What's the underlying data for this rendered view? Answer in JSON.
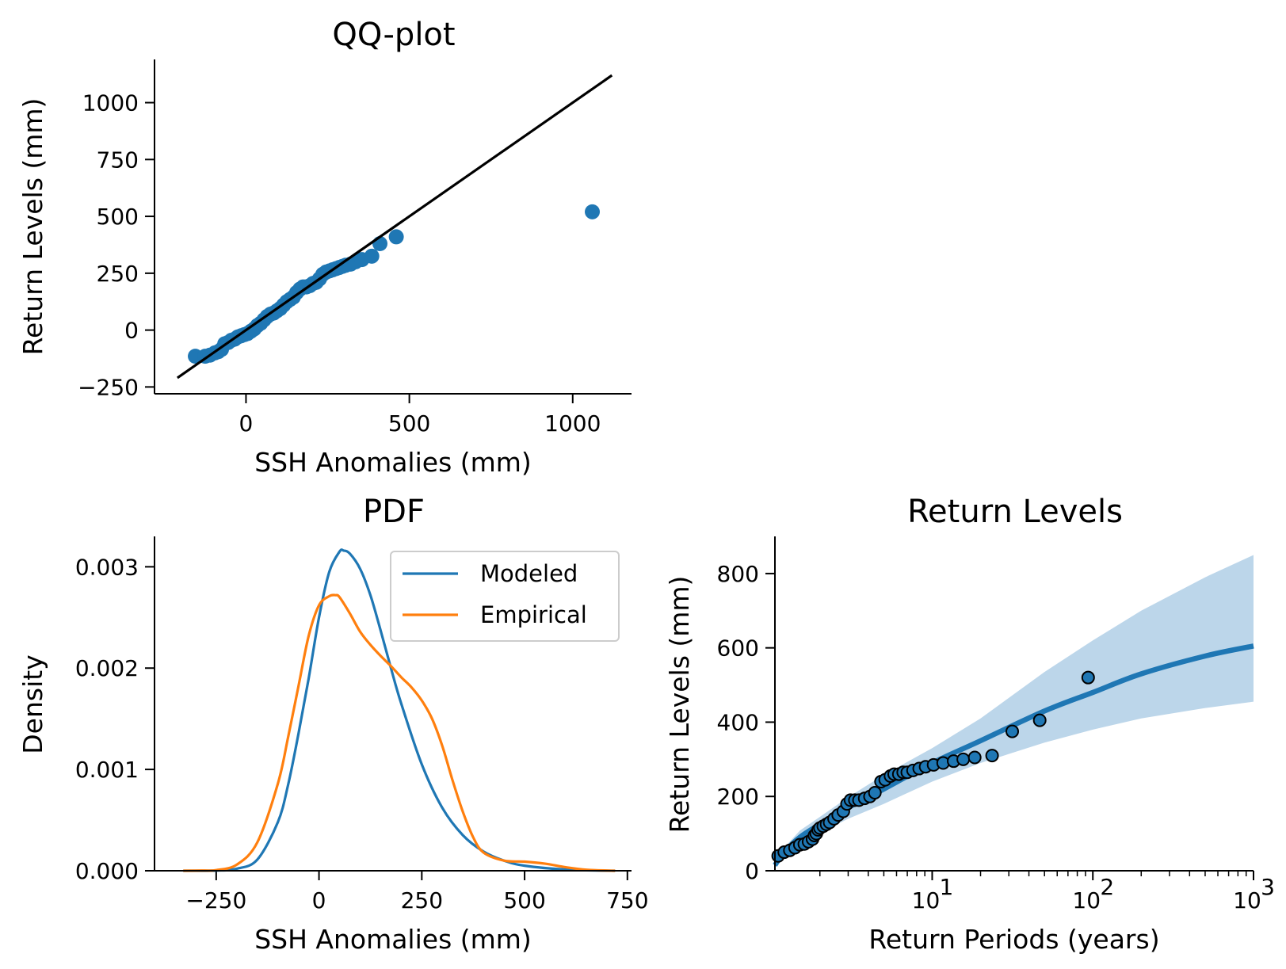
{
  "colors": {
    "blue": "#1f77b4",
    "orange": "#ff7f0e",
    "band": "#bcd6ea",
    "line": "#000000"
  },
  "chart_data": [
    {
      "id": "qq",
      "type": "scatter",
      "title": "QQ-plot",
      "xlabel": "SSH Anomalies (mm)",
      "ylabel": "Return Levels (mm)",
      "xlim": [
        -280,
        1180
      ],
      "ylim": [
        -280,
        1190
      ],
      "xticks": [
        0,
        500,
        1000
      ],
      "xticklabels": [
        "0",
        "500",
        "1000"
      ],
      "yticks": [
        -250,
        0,
        250,
        500,
        750,
        1000
      ],
      "yticklabels": [
        "−250",
        "0",
        "250",
        "500",
        "750",
        "1000"
      ],
      "reference_line": {
        "x": [
          -210,
          1120
        ],
        "y": [
          -210,
          1120
        ]
      },
      "points": {
        "x": [
          -155,
          -125,
          -110,
          -95,
          -85,
          -75,
          -65,
          -55,
          -45,
          -35,
          -25,
          -15,
          -5,
          5,
          15,
          25,
          35,
          45,
          55,
          65,
          75,
          85,
          95,
          105,
          115,
          125,
          135,
          145,
          155,
          165,
          175,
          185,
          195,
          205,
          215,
          225,
          235,
          245,
          255,
          265,
          275,
          285,
          295,
          305,
          320,
          335,
          355,
          385,
          410,
          460,
          1060
        ],
        "y": [
          -115,
          -115,
          -110,
          -100,
          -95,
          -85,
          -60,
          -55,
          -45,
          -40,
          -30,
          -25,
          -20,
          -15,
          -5,
          5,
          20,
          30,
          45,
          60,
          70,
          75,
          85,
          95,
          110,
          125,
          135,
          145,
          165,
          180,
          190,
          190,
          195,
          205,
          210,
          225,
          245,
          255,
          260,
          265,
          270,
          275,
          280,
          285,
          290,
          300,
          310,
          325,
          380,
          410,
          520
        ]
      }
    },
    {
      "id": "pdf",
      "type": "line",
      "title": "PDF",
      "xlabel": "SSH Anomalies (mm)",
      "ylabel": "Density",
      "xlim": [
        -400,
        760
      ],
      "ylim": [
        0,
        0.0033
      ],
      "xticks": [
        -250,
        0,
        250,
        500,
        750
      ],
      "xticklabels": [
        "−250",
        "0",
        "250",
        "500",
        "750"
      ],
      "yticks": [
        0,
        0.001,
        0.002,
        0.003
      ],
      "yticklabels": [
        "0.000",
        "0.001",
        "0.002",
        "0.003"
      ],
      "legend": {
        "position": "top-right",
        "entries": [
          "Modeled",
          "Empirical"
        ]
      },
      "series": [
        {
          "name": "Modeled",
          "x": [
            -330,
            -250,
            -200,
            -150,
            -100,
            -75,
            -50,
            -25,
            0,
            25,
            50,
            60,
            75,
            100,
            125,
            150,
            175,
            200,
            250,
            300,
            350,
            400,
            450,
            500,
            600,
            720
          ],
          "y": [
            0,
            2e-06,
            2e-05,
            0.00011,
            0.00048,
            0.00085,
            0.00135,
            0.0019,
            0.0025,
            0.00295,
            0.00315,
            0.00316,
            0.00313,
            0.00298,
            0.00272,
            0.00237,
            0.002,
            0.00165,
            0.00105,
            0.00062,
            0.00035,
            0.00019,
            0.0001,
            5e-05,
            1.2e-05,
            0
          ]
        },
        {
          "name": "Empirical",
          "x": [
            -330,
            -280,
            -250,
            -200,
            -150,
            -100,
            -75,
            -50,
            -25,
            0,
            25,
            40,
            50,
            75,
            100,
            125,
            150,
            175,
            200,
            225,
            250,
            275,
            300,
            325,
            350,
            375,
            400,
            450,
            500,
            550,
            600,
            650,
            720
          ],
          "y": [
            0,
            2e-06,
            6e-06,
            6e-05,
            0.00028,
            0.00086,
            0.00132,
            0.00182,
            0.00232,
            0.00262,
            0.00271,
            0.00272,
            0.0027,
            0.00254,
            0.00236,
            0.00223,
            0.00212,
            0.00202,
            0.00191,
            0.00181,
            0.00168,
            0.0015,
            0.00123,
            0.00089,
            0.00058,
            0.00033,
            0.00018,
            0.0001,
            9e-05,
            7e-05,
            3.5e-05,
            1e-05,
            0
          ]
        }
      ]
    },
    {
      "id": "rl",
      "type": "line",
      "title": "Return Levels",
      "xlabel": "Return Periods (years)",
      "ylabel": "Return Levels (mm)",
      "xscale": "log",
      "xlim": [
        1.05,
        1000
      ],
      "ylim": [
        0,
        900
      ],
      "xticks": [
        10,
        100,
        1000
      ],
      "xticklabels": [
        "10",
        "10",
        "10"
      ],
      "xtick_exponents": [
        "1",
        "2",
        "3"
      ],
      "yticks": [
        0,
        200,
        400,
        600,
        800
      ],
      "yticklabels": [
        "0",
        "200",
        "400",
        "600",
        "800"
      ],
      "model": {
        "x": [
          1.05,
          1.2,
          1.5,
          2,
          3,
          5,
          10,
          20,
          50,
          100,
          200,
          500,
          1000
        ],
        "y": [
          15,
          50,
          90,
          125,
          170,
          220,
          290,
          350,
          430,
          480,
          530,
          578,
          605
        ]
      },
      "ci_upper": {
        "x": [
          1.05,
          1.2,
          1.5,
          2,
          3,
          5,
          10,
          20,
          50,
          100,
          200,
          500,
          1000
        ],
        "y": [
          22,
          62,
          108,
          145,
          198,
          258,
          330,
          410,
          535,
          620,
          700,
          790,
          850
        ]
      },
      "ci_lower": {
        "x": [
          1.05,
          1.2,
          1.5,
          2,
          3,
          5,
          10,
          20,
          50,
          100,
          200,
          500,
          1000
        ],
        "y": [
          8,
          38,
          72,
          102,
          140,
          180,
          240,
          290,
          345,
          380,
          410,
          438,
          455
        ]
      },
      "points": {
        "x": [
          1.1,
          1.2,
          1.3,
          1.4,
          1.5,
          1.6,
          1.7,
          1.8,
          1.85,
          1.9,
          1.95,
          2.0,
          2.1,
          2.2,
          2.3,
          2.45,
          2.6,
          2.8,
          2.95,
          3.1,
          3.3,
          3.5,
          3.8,
          4.1,
          4.4,
          4.8,
          5.1,
          5.5,
          5.8,
          6.2,
          6.6,
          7.0,
          7.6,
          8.3,
          9.1,
          10.2,
          11.7,
          13.6,
          15.6,
          18.4,
          23.6,
          31.5,
          46.7,
          93.5
        ],
        "y": [
          40,
          50,
          55,
          62,
          70,
          72,
          78,
          85,
          95,
          100,
          110,
          115,
          120,
          125,
          130,
          140,
          150,
          160,
          180,
          190,
          190,
          190,
          195,
          200,
          210,
          240,
          245,
          255,
          260,
          260,
          265,
          265,
          270,
          275,
          280,
          285,
          290,
          295,
          300,
          305,
          310,
          375,
          405,
          520
        ]
      }
    }
  ]
}
